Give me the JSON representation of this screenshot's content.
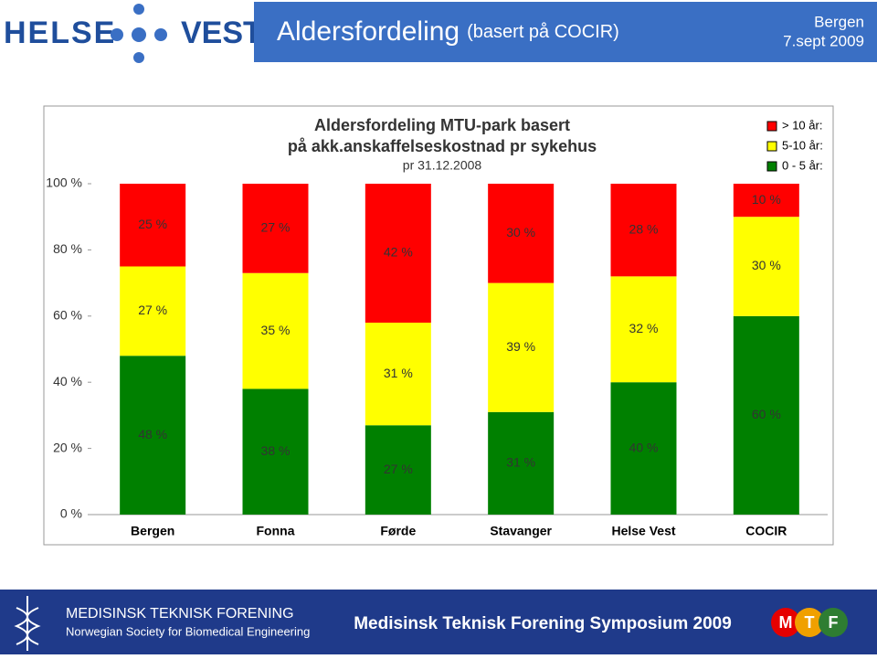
{
  "header": {
    "logo_left": "HELSE",
    "logo_right": "VEST",
    "title": "Aldersfordeling",
    "subtitle": "(basert på COCIR)",
    "place": "Bergen",
    "date": "7.sept 2009"
  },
  "chart_data": {
    "type": "stacked_bar",
    "title": [
      "Aldersfordeling MTU-park basert",
      "på akk.anskaffelseskostnad pr sykehus"
    ],
    "subtitle": "pr 31.12.2008",
    "categories": [
      "Bergen",
      "Fonna",
      "Førde",
      "Stavanger",
      "Helse Vest",
      "COCIR"
    ],
    "series": [
      {
        "name": "0 - 5 år:",
        "color": "#008000",
        "values": [
          48,
          38,
          27,
          31,
          40,
          60
        ],
        "value_labels": [
          "48 %",
          "38 %",
          "27 %",
          "31 %",
          "40 %",
          "60 %"
        ]
      },
      {
        "name": "5-10 år:",
        "color": "#ffff00",
        "values": [
          27,
          35,
          31,
          39,
          32,
          30
        ],
        "value_labels": [
          "27 %",
          "35 %",
          "31 %",
          "39 %",
          "32 %",
          "30 %"
        ]
      },
      {
        "name": "> 10 år:",
        "color": "#ff0000",
        "values": [
          25,
          27,
          42,
          30,
          28,
          10
        ],
        "value_labels": [
          "25 %",
          "27 %",
          "42 %",
          "30 %",
          "28 %",
          "10 %"
        ]
      }
    ],
    "ylim": [
      0,
      100
    ],
    "yticks": [
      {
        "value": 0,
        "label": "0 %"
      },
      {
        "value": 20,
        "label": "20 %"
      },
      {
        "value": 40,
        "label": "40 %"
      },
      {
        "value": 60,
        "label": "60 %"
      },
      {
        "value": 80,
        "label": "80 %"
      },
      {
        "value": 100,
        "label": "100 %"
      }
    ],
    "legend": "top-right"
  },
  "footer": {
    "org": "MEDISINSK TEKNISK FORENING",
    "org_en": "Norwegian Society for Biomedical Engineering",
    "event": "Medisinsk Teknisk Forening Symposium 2009",
    "logo": [
      "M",
      "T",
      "F"
    ]
  }
}
